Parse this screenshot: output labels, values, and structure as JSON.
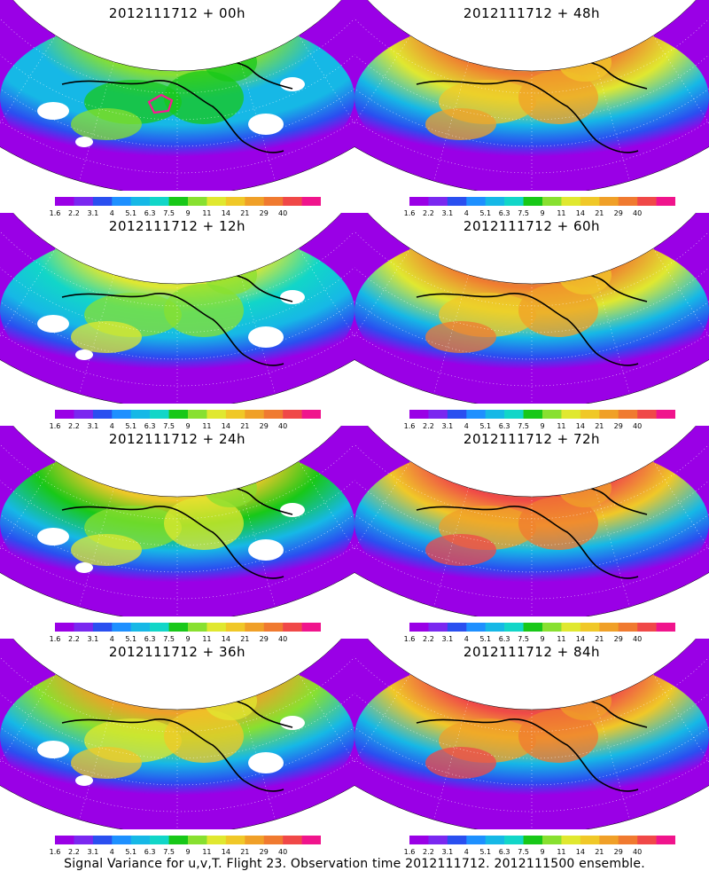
{
  "panels": [
    {
      "title": "2012111712 + 00h",
      "intensity": 0.35
    },
    {
      "title": "2012111712 + 48h",
      "intensity": 0.8
    },
    {
      "title": "2012111712 + 12h",
      "intensity": 0.45
    },
    {
      "title": "2012111712 + 60h",
      "intensity": 0.85
    },
    {
      "title": "2012111712 + 24h",
      "intensity": 0.55
    },
    {
      "title": "2012111712 + 72h",
      "intensity": 0.95
    },
    {
      "title": "2012111712 + 36h",
      "intensity": 0.65
    },
    {
      "title": "2012111712 + 84h",
      "intensity": 1.0
    }
  ],
  "colorbar": {
    "labels": [
      "1.6",
      "2.2",
      "3.1",
      "4",
      "5.1",
      "6.3",
      "7.5",
      "9",
      "11",
      "14",
      "21",
      "29",
      "40"
    ],
    "colors": [
      "#9a00e6",
      "#7a28f0",
      "#2a4ff0",
      "#1e90ff",
      "#16b8e6",
      "#12d6c8",
      "#18c818",
      "#88e030",
      "#e0e830",
      "#f0c828",
      "#f0a028",
      "#f07a30",
      "#f04848",
      "#f0148c"
    ]
  },
  "caption": "Signal Variance for u,v,T. Flight 23. Observation time 2012111712. 2012111500 ensemble."
}
